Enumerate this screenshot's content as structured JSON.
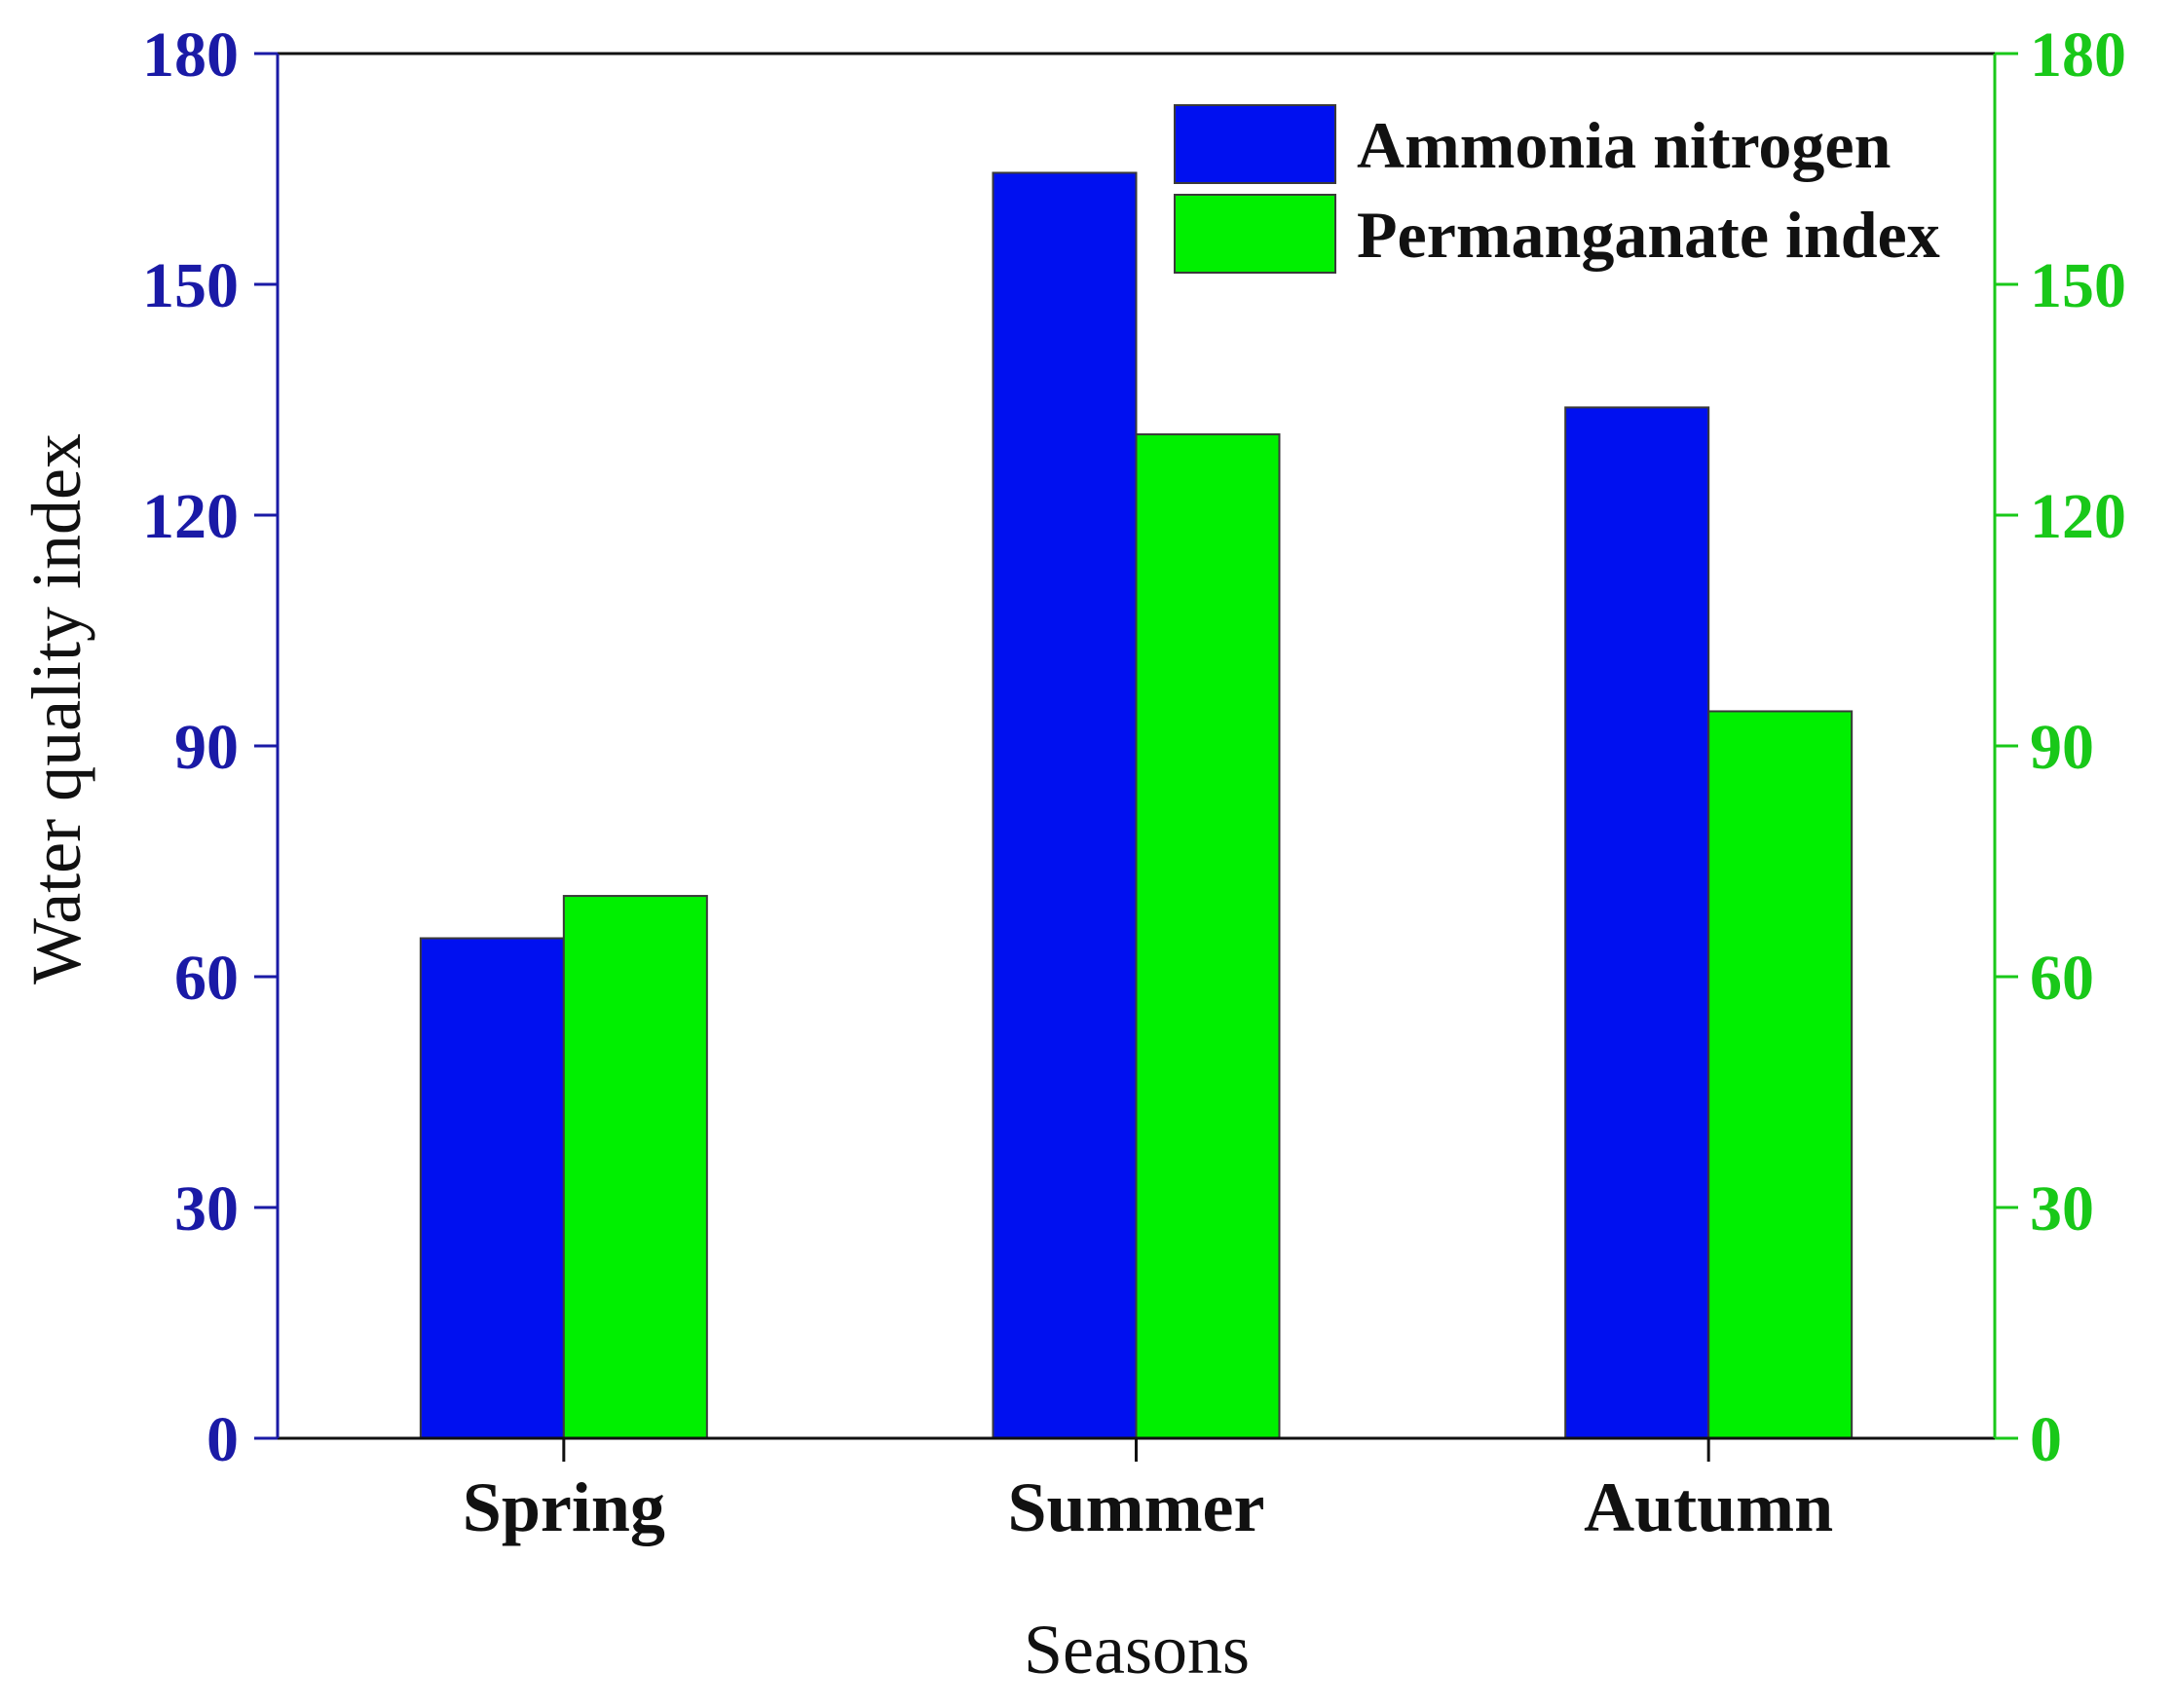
{
  "chart_data": {
    "type": "bar",
    "categories": [
      "Spring",
      "Summer",
      "Autumn"
    ],
    "series": [
      {
        "name": "Ammonia nitrogen",
        "values": [
          65,
          164.5,
          134
        ],
        "color": "#0010f0",
        "axis": "left"
      },
      {
        "name": "Permanganate index",
        "values": [
          70.5,
          130.5,
          94.5
        ],
        "color": "#00f000",
        "axis": "right"
      }
    ],
    "title": "",
    "xlabel": "Seasons",
    "ylabel": "Water quality index",
    "ylim": [
      0,
      180
    ],
    "y2lim": [
      0,
      180
    ],
    "yticks": [
      "0",
      "30",
      "60",
      "90",
      "120",
      "150",
      "180"
    ],
    "y2ticks": [
      "0",
      "30",
      "60",
      "90",
      "120",
      "150",
      "180"
    ],
    "grid": false,
    "legend_position": "top-right",
    "left_axis_color": "#1a1aa6",
    "right_axis_color": "#19c819"
  }
}
